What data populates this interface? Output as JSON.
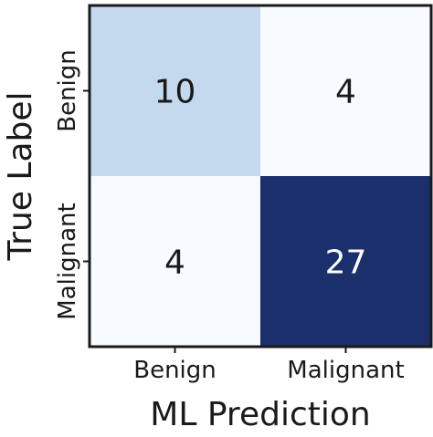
{
  "chart_data": {
    "type": "heatmap",
    "title": "",
    "xlabel": "ML Prediction",
    "ylabel": "True Label",
    "x_categories": [
      "Benign",
      "Malignant"
    ],
    "y_categories": [
      "Benign",
      "Malignant"
    ],
    "values": [
      [
        10,
        4
      ],
      [
        4,
        27
      ]
    ],
    "colormap": "Blues",
    "colorbar": false,
    "colors": {
      "low": "#f7fbff",
      "mid": "#c6dbef",
      "high": "#1a2f6b",
      "text_dark": "#1a1a1a",
      "text_light": "#ffffff",
      "axis": "#1a1a1a"
    }
  }
}
